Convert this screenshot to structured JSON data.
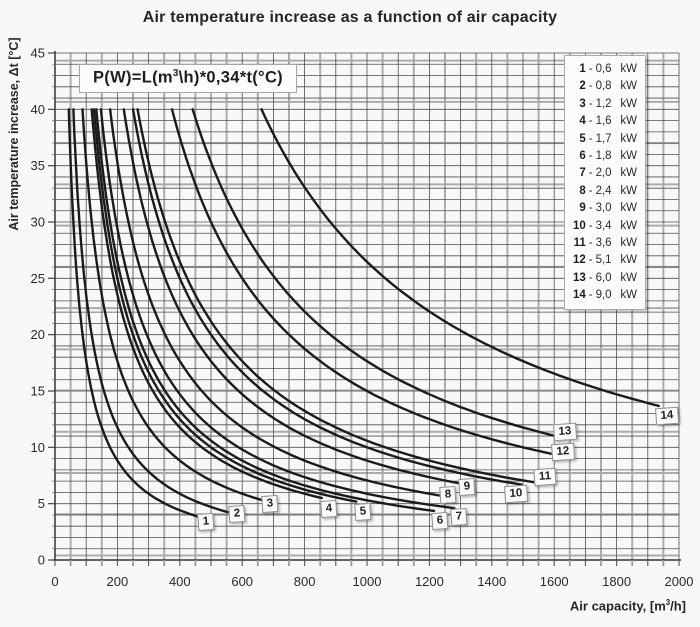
{
  "title": "Air temperature increase as a function of air capacity",
  "formula": {
    "prefix": "P(W)=L(m",
    "sup": "3",
    "suffix": "\\h)*0,34*t(°C)"
  },
  "axes": {
    "x": {
      "label_prefix": "Air capacity, [m",
      "label_sup": "3",
      "label_suffix": "/h]"
    },
    "y": {
      "label": "Air temperature increase, Δt [°C]"
    }
  },
  "legend": {
    "unit": "kW",
    "separator": "-",
    "items": [
      {
        "num": "1",
        "value": "0,6"
      },
      {
        "num": "2",
        "value": "0,8"
      },
      {
        "num": "3",
        "value": "1,2"
      },
      {
        "num": "4",
        "value": "1,6"
      },
      {
        "num": "5",
        "value": "1,7"
      },
      {
        "num": "6",
        "value": "1,8"
      },
      {
        "num": "7",
        "value": "2,0"
      },
      {
        "num": "8",
        "value": "2,4"
      },
      {
        "num": "9",
        "value": "3,0"
      },
      {
        "num": "10",
        "value": "3,4"
      },
      {
        "num": "11",
        "value": "3,6"
      },
      {
        "num": "12",
        "value": "5,1"
      },
      {
        "num": "13",
        "value": "6,0"
      },
      {
        "num": "14",
        "value": "9,0"
      }
    ]
  },
  "chart_data": {
    "type": "line",
    "title": "Air temperature increase as a function of air capacity",
    "xlabel": "Air capacity, [m³/h]",
    "ylabel": "Air temperature increase, Δt [°C]",
    "xlim": [
      0,
      2000
    ],
    "ylim": [
      0,
      45
    ],
    "x_major_ticks": [
      0,
      200,
      400,
      600,
      800,
      1000,
      1200,
      1400,
      1600,
      1800,
      2000
    ],
    "y_major_ticks": [
      0,
      5,
      10,
      15,
      20,
      25,
      30,
      35,
      40,
      45
    ],
    "x_minor_step": 50,
    "y_minor_step": 1,
    "grid": true,
    "legend_position": "top-right",
    "formula_text": "P(W)=L(m³\\h)*0,34*t(°C)",
    "curve_equation": "Δt[°C] = P[W] / (0.34 · L[m³/h])",
    "t_start": 40,
    "series": [
      {
        "label": "1",
        "power_kW": 0.6,
        "x_end": 460,
        "label_at": [
          485,
          3.4
        ]
      },
      {
        "label": "2",
        "power_kW": 0.8,
        "x_end": 560,
        "label_at": [
          583,
          4.1
        ]
      },
      {
        "label": "3",
        "power_kW": 1.2,
        "x_end": 675,
        "label_at": [
          690,
          5.0
        ]
      },
      {
        "label": "4",
        "power_kW": 1.6,
        "x_end": 855,
        "label_at": [
          878,
          4.5
        ]
      },
      {
        "label": "5",
        "power_kW": 1.7,
        "x_end": 965,
        "label_at": [
          987,
          4.3
        ]
      },
      {
        "label": "6",
        "power_kW": 1.8,
        "x_end": 1215,
        "label_at": [
          1234,
          3.5
        ]
      },
      {
        "label": "7",
        "power_kW": 2.0,
        "x_end": 1280,
        "label_at": [
          1295,
          3.8
        ]
      },
      {
        "label": "8",
        "power_kW": 2.4,
        "x_end": 1240,
        "label_at": [
          1260,
          5.8
        ]
      },
      {
        "label": "9",
        "power_kW": 3.0,
        "x_end": 1305,
        "label_at": [
          1320,
          6.5
        ]
      },
      {
        "label": "10",
        "power_kW": 3.4,
        "x_end": 1495,
        "label_at": [
          1478,
          5.9
        ]
      },
      {
        "label": "11",
        "power_kW": 3.6,
        "x_end": 1550,
        "label_at": [
          1570,
          7.4
        ]
      },
      {
        "label": "12",
        "power_kW": 5.1,
        "x_end": 1600,
        "label_at": [
          1628,
          9.6
        ]
      },
      {
        "label": "13",
        "power_kW": 6.0,
        "x_end": 1615,
        "label_at": [
          1635,
          11.4
        ]
      },
      {
        "label": "14",
        "power_kW": 9.0,
        "x_end": 1935,
        "label_at": [
          1960,
          12.8
        ]
      }
    ]
  },
  "colors": {
    "background": "#f8f8f8",
    "curve": "#1b1b1b",
    "grid_minor": "#4f4f4f",
    "grid_major": "#ababab",
    "axis": "#333333",
    "box_bg": "#fcfcfc",
    "box_border": "#a6a6a6"
  }
}
